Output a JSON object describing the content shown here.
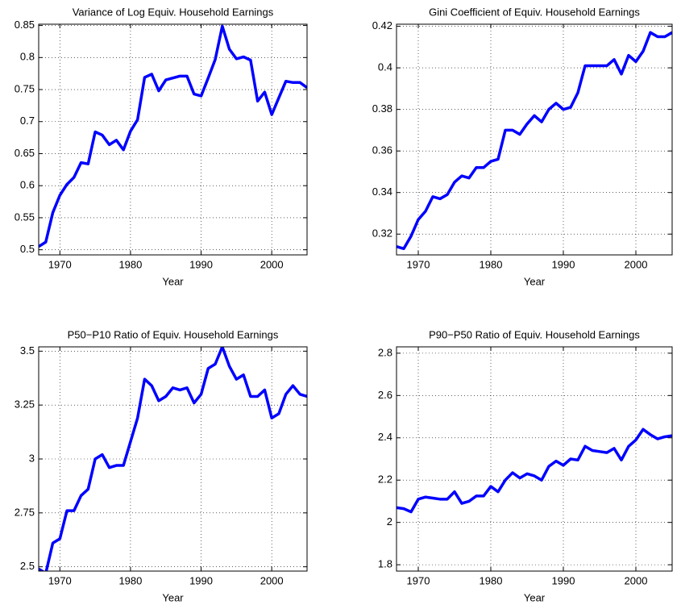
{
  "chart_data": [
    {
      "type": "line",
      "title": "Variance of Log Equiv. Household Earnings",
      "xlabel": "Year",
      "x": [
        1967,
        1968,
        1969,
        1970,
        1971,
        1972,
        1973,
        1974,
        1975,
        1976,
        1977,
        1978,
        1979,
        1980,
        1981,
        1982,
        1983,
        1984,
        1985,
        1986,
        1987,
        1988,
        1989,
        1990,
        1991,
        1992,
        1993,
        1994,
        1995,
        1996,
        1997,
        1998,
        1999,
        2000,
        2001,
        2002,
        2003,
        2004,
        2005
      ],
      "values": [
        0.505,
        0.512,
        0.558,
        0.585,
        0.602,
        0.613,
        0.636,
        0.634,
        0.684,
        0.679,
        0.664,
        0.671,
        0.656,
        0.685,
        0.703,
        0.769,
        0.774,
        0.748,
        0.765,
        0.768,
        0.771,
        0.771,
        0.743,
        0.74,
        0.768,
        0.797,
        0.849,
        0.813,
        0.798,
        0.801,
        0.796,
        0.732,
        0.746,
        0.711,
        0.737,
        0.763,
        0.761,
        0.761,
        0.753
      ],
      "color": "#0000ff",
      "xlim": [
        1967,
        2005
      ],
      "xticks": [
        1970,
        1980,
        1990,
        2000
      ],
      "ylim": [
        0.492,
        0.852
      ],
      "yticks": [
        0.5,
        0.55,
        0.6,
        0.65,
        0.7,
        0.75,
        0.8,
        0.85
      ],
      "grid": true
    },
    {
      "type": "line",
      "title": "Gini Coefficient of Equiv. Household Earnings",
      "xlabel": "Year",
      "x": [
        1967,
        1968,
        1969,
        1970,
        1971,
        1972,
        1973,
        1974,
        1975,
        1976,
        1977,
        1978,
        1979,
        1980,
        1981,
        1982,
        1983,
        1984,
        1985,
        1986,
        1987,
        1988,
        1989,
        1990,
        1991,
        1992,
        1993,
        1994,
        1995,
        1996,
        1997,
        1998,
        1999,
        2000,
        2001,
        2002,
        2003,
        2004,
        2005
      ],
      "values": [
        0.314,
        0.313,
        0.319,
        0.327,
        0.331,
        0.338,
        0.337,
        0.339,
        0.345,
        0.348,
        0.347,
        0.352,
        0.352,
        0.355,
        0.356,
        0.37,
        0.37,
        0.368,
        0.373,
        0.377,
        0.374,
        0.38,
        0.383,
        0.38,
        0.381,
        0.388,
        0.401,
        0.401,
        0.401,
        0.401,
        0.404,
        0.397,
        0.406,
        0.403,
        0.408,
        0.417,
        0.415,
        0.415,
        0.417
      ],
      "color": "#0000ff",
      "xlim": [
        1967,
        2005
      ],
      "xticks": [
        1970,
        1980,
        1990,
        2000
      ],
      "ylim": [
        0.31,
        0.421
      ],
      "yticks": [
        0.32,
        0.34,
        0.36,
        0.38,
        0.4,
        0.42
      ],
      "grid": true
    },
    {
      "type": "line",
      "title": "P50−P10 Ratio of Equiv. Household Earnings",
      "xlabel": "Year",
      "x": [
        1967,
        1968,
        1969,
        1970,
        1971,
        1972,
        1973,
        1974,
        1975,
        1976,
        1977,
        1978,
        1979,
        1980,
        1981,
        1982,
        1983,
        1984,
        1985,
        1986,
        1987,
        1988,
        1989,
        1990,
        1991,
        1992,
        1993,
        1994,
        1995,
        1996,
        1997,
        1998,
        1999,
        2000,
        2001,
        2002,
        2003,
        2004,
        2005
      ],
      "values": [
        2.49,
        2.47,
        2.61,
        2.63,
        2.76,
        2.76,
        2.83,
        2.86,
        3.0,
        3.02,
        2.96,
        2.97,
        2.97,
        3.08,
        3.19,
        3.37,
        3.34,
        3.27,
        3.29,
        3.33,
        3.32,
        3.33,
        3.26,
        3.3,
        3.42,
        3.44,
        3.52,
        3.43,
        3.37,
        3.39,
        3.29,
        3.29,
        3.32,
        3.19,
        3.21,
        3.3,
        3.34,
        3.3,
        3.29
      ],
      "color": "#0000ff",
      "xlim": [
        1967,
        2005
      ],
      "xticks": [
        1970,
        1980,
        1990,
        2000
      ],
      "ylim": [
        2.48,
        3.52
      ],
      "yticks": [
        2.5,
        2.75,
        3,
        3.25,
        3.5
      ],
      "grid": true
    },
    {
      "type": "line",
      "title": "P90−P50 Ratio of Equiv. Household Earnings",
      "xlabel": "Year",
      "x": [
        1967,
        1968,
        1969,
        1970,
        1971,
        1972,
        1973,
        1974,
        1975,
        1976,
        1977,
        1978,
        1979,
        1980,
        1981,
        1982,
        1983,
        1984,
        1985,
        1986,
        1987,
        1988,
        1989,
        1990,
        1991,
        1992,
        1993,
        1994,
        1995,
        1996,
        1997,
        1998,
        1999,
        2000,
        2001,
        2002,
        2003,
        2004,
        2005
      ],
      "values": [
        2.07,
        2.065,
        2.05,
        2.11,
        2.12,
        2.115,
        2.11,
        2.11,
        2.145,
        2.09,
        2.1,
        2.125,
        2.125,
        2.17,
        2.145,
        2.2,
        2.235,
        2.21,
        2.23,
        2.22,
        2.2,
        2.265,
        2.29,
        2.27,
        2.3,
        2.295,
        2.36,
        2.34,
        2.335,
        2.33,
        2.35,
        2.295,
        2.36,
        2.39,
        2.44,
        2.415,
        2.395,
        2.405,
        2.41
      ],
      "color": "#0000ff",
      "xlim": [
        1967,
        2005
      ],
      "xticks": [
        1970,
        1980,
        1990,
        2000
      ],
      "ylim": [
        1.77,
        2.83
      ],
      "yticks": [
        1.8,
        2,
        2.2,
        2.4,
        2.6,
        2.8
      ],
      "grid": true
    }
  ]
}
